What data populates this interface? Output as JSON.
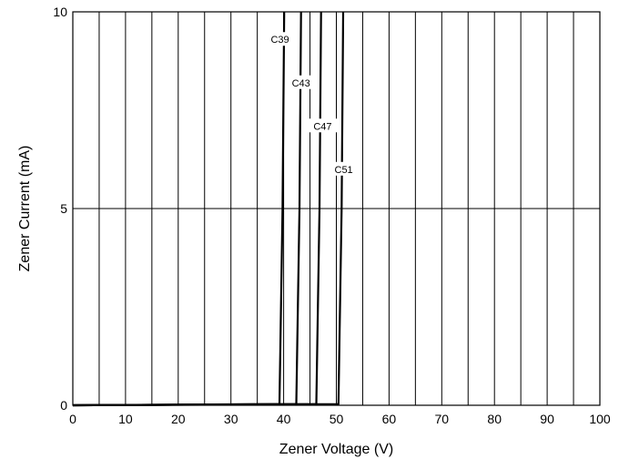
{
  "chart_data": {
    "type": "line",
    "title": "",
    "xlabel": "Zener Voltage (V)",
    "ylabel": "Zener Current (mA)",
    "xlim": [
      0,
      100
    ],
    "ylim": [
      0,
      10
    ],
    "x_ticks": [
      0,
      10,
      20,
      30,
      40,
      50,
      60,
      70,
      80,
      90,
      100
    ],
    "y_ticks": [
      0,
      5,
      10
    ],
    "x_gridlines": [
      0,
      5,
      10,
      15,
      20,
      25,
      30,
      35,
      40,
      45,
      50,
      55,
      60,
      65,
      70,
      75,
      80,
      85,
      90,
      95,
      100
    ],
    "y_gridlines": [
      0,
      5,
      10
    ],
    "grid": true,
    "legend": "none",
    "series": [
      {
        "name": "C39",
        "x": [
          0,
          39.2,
          39.8,
          40.1
        ],
        "y": [
          0,
          0.03,
          5,
          10
        ],
        "label_at": [
          39.3,
          9.3
        ]
      },
      {
        "name": "C43",
        "x": [
          0,
          42.4,
          43.0,
          43.3
        ],
        "y": [
          0,
          0.03,
          5,
          10
        ],
        "label_at": [
          43.3,
          8.2
        ]
      },
      {
        "name": "C47",
        "x": [
          0,
          46.2,
          46.8,
          47.1
        ],
        "y": [
          0,
          0.03,
          5,
          10
        ],
        "label_at": [
          47.4,
          7.1
        ]
      },
      {
        "name": "C51",
        "x": [
          0,
          50.4,
          51.0,
          51.3
        ],
        "y": [
          0,
          0.03,
          5,
          10
        ],
        "label_at": [
          51.4,
          6.0
        ]
      }
    ]
  }
}
